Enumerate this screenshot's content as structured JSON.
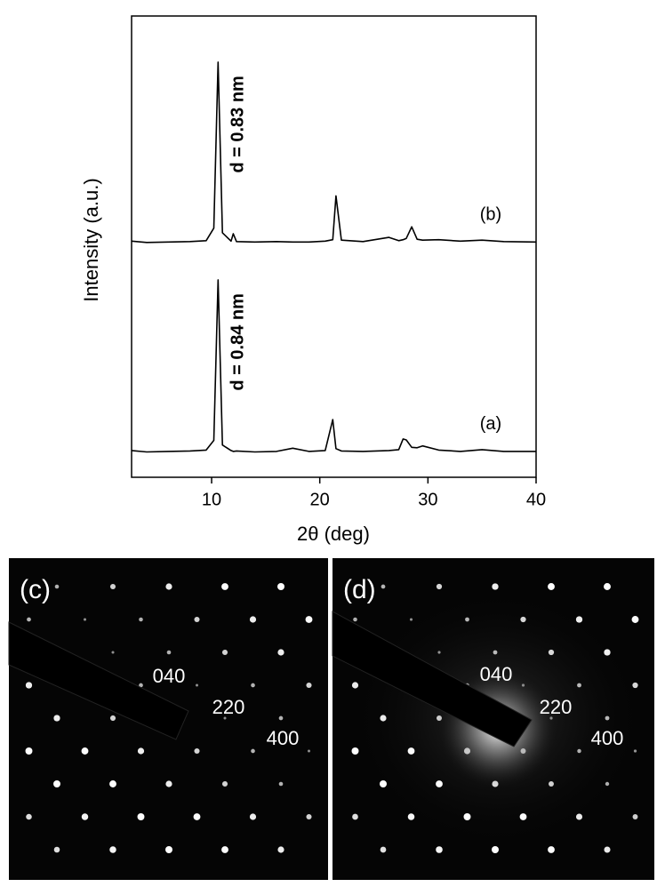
{
  "chart_data": {
    "type": "line",
    "y_label": "Intensity (a.u.)",
    "x_label": "2θ (deg)",
    "x": [
      2.6,
      4,
      6,
      8,
      9.5,
      10.2,
      10.6,
      11.0,
      11.8,
      12.0,
      12.3,
      14,
      16,
      17.5,
      19,
      20.5,
      21.2,
      21.5,
      22,
      24,
      26.4,
      27.3,
      27.7,
      28.0,
      28.5,
      29,
      29.5,
      31,
      33,
      35,
      37,
      40
    ],
    "series": [
      {
        "name": "(a)",
        "color": "#000000",
        "values": [
          5.8,
          5.5,
          5.6,
          5.7,
          5.9,
          8,
          42.8,
          7,
          5.8,
          5.6,
          5.7,
          5.5,
          5.6,
          6.3,
          5.6,
          5.8,
          12.5,
          6.2,
          5.7,
          5.6,
          5.8,
          6,
          8.3,
          8.1,
          6.5,
          6.4,
          6.8,
          5.9,
          5.6,
          6,
          5.6,
          5.6
        ]
      },
      {
        "name": "(b)",
        "color": "#000000",
        "values": [
          51.2,
          50.9,
          51,
          51.1,
          51.3,
          54,
          90,
          53,
          51.2,
          52.8,
          51.1,
          51,
          51.1,
          51,
          51,
          51.2,
          51.5,
          61,
          51.4,
          51.1,
          52,
          51.3,
          51.5,
          51.8,
          54.3,
          51.6,
          51.4,
          51.5,
          51.2,
          51.4,
          51.1,
          51
        ]
      }
    ],
    "annotations": [
      "d = 0.84 nm",
      "d = 0.83 nm"
    ],
    "xlim": [
      2.6,
      40
    ],
    "ylim": [
      0,
      100
    ],
    "xticks": [
      10,
      20,
      30,
      40
    ],
    "grid": false
  },
  "panels": [
    {
      "label": "(c)",
      "spots": [
        "040",
        "220",
        "400"
      ]
    },
    {
      "label": "(d)",
      "spots": [
        "040",
        "220",
        "400"
      ]
    }
  ]
}
